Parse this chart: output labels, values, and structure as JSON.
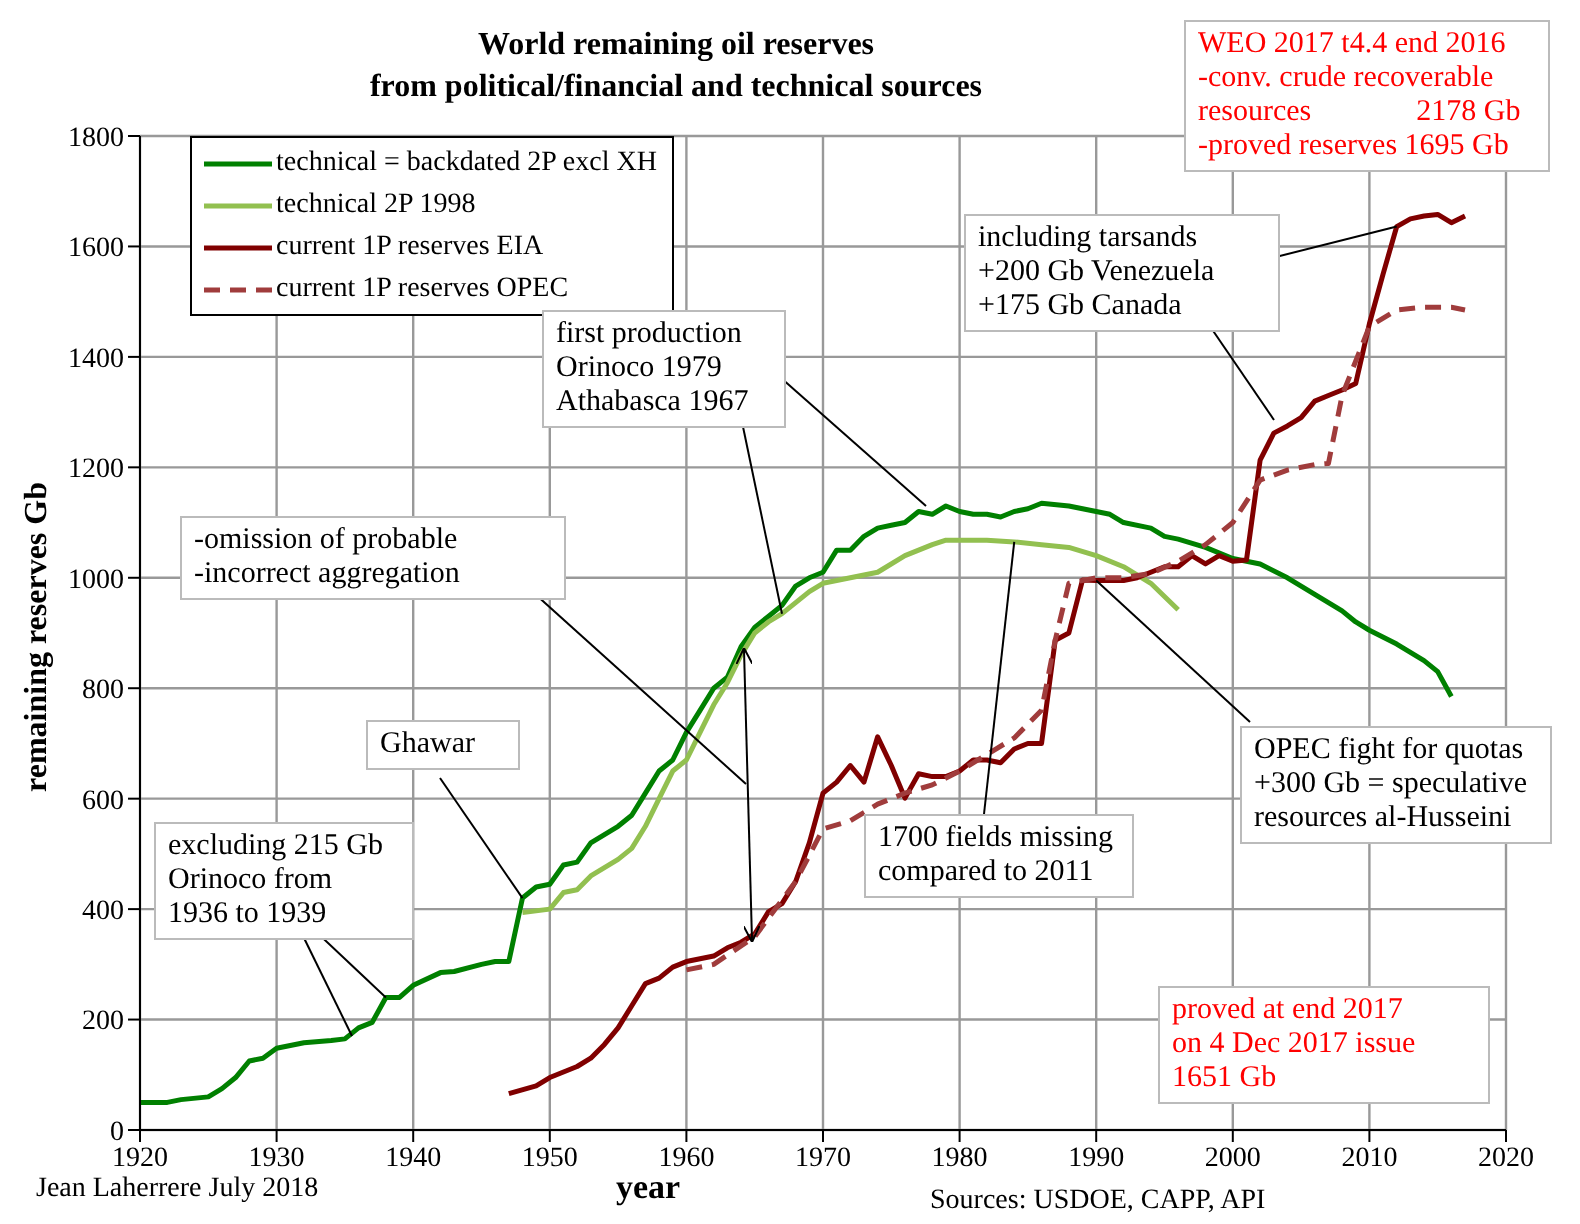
{
  "chart_data": {
    "type": "line",
    "title": "World remaining oil reserves",
    "subtitle": "from political/financial and technical sources",
    "xlabel": "year",
    "ylabel": "remaining reserves Gb",
    "xlim": [
      1920,
      2020
    ],
    "xticks": [
      1920,
      1930,
      1940,
      1950,
      1960,
      1970,
      1980,
      1990,
      2000,
      2010,
      2020
    ],
    "ylim": [
      0,
      1800
    ],
    "yticks": [
      0,
      200,
      400,
      600,
      800,
      1000,
      1200,
      1400,
      1600,
      1800
    ],
    "grid": true,
    "legend": "top left",
    "marker": "none",
    "series": [
      {
        "name": "technical = backdated 2P excl XH",
        "color": "#008000",
        "x": [
          1920,
          1922,
          1923,
          1925,
          1926,
          1927,
          1928,
          1929,
          1930,
          1932,
          1934,
          1935,
          1936,
          1937,
          1938,
          1939,
          1940,
          1942,
          1943,
          1945,
          1946,
          1947,
          1948,
          1949,
          1950,
          1951,
          1952,
          1953,
          1955,
          1956,
          1957,
          1958,
          1959,
          1960,
          1961,
          1962,
          1963,
          1964,
          1965,
          1966,
          1967,
          1968,
          1969,
          1970,
          1971,
          1972,
          1973,
          1974,
          1975,
          1976,
          1977,
          1978,
          1979,
          1980,
          1981,
          1982,
          1983,
          1984,
          1985,
          1986,
          1988,
          1990,
          1991,
          1992,
          1994,
          1995,
          1996,
          1998,
          2000,
          2002,
          2004,
          2006,
          2008,
          2009,
          2010,
          2012,
          2014,
          2015,
          2016
        ],
        "values": [
          50,
          50,
          55,
          60,
          75,
          95,
          125,
          130,
          148,
          158,
          162,
          165,
          185,
          195,
          240,
          240,
          262,
          285,
          287,
          300,
          305,
          305,
          420,
          440,
          445,
          480,
          485,
          520,
          550,
          570,
          610,
          650,
          670,
          720,
          760,
          800,
          820,
          875,
          910,
          930,
          950,
          985,
          1000,
          1010,
          1050,
          1050,
          1075,
          1090,
          1095,
          1100,
          1120,
          1115,
          1130,
          1120,
          1115,
          1115,
          1110,
          1120,
          1125,
          1135,
          1130,
          1120,
          1115,
          1100,
          1090,
          1075,
          1070,
          1055,
          1035,
          1025,
          1000,
          970,
          940,
          920,
          905,
          880,
          850,
          830,
          785
        ]
      },
      {
        "name": "technical 2P 1998",
        "color": "#92c050",
        "x": [
          1948,
          1950,
          1951,
          1952,
          1953,
          1955,
          1956,
          1957,
          1958,
          1959,
          1960,
          1961,
          1962,
          1963,
          1964,
          1965,
          1966,
          1967,
          1968,
          1969,
          1970,
          1972,
          1974,
          1976,
          1978,
          1979,
          1980,
          1982,
          1984,
          1986,
          1988,
          1990,
          1992,
          1994,
          1996
        ],
        "values": [
          394,
          400,
          430,
          435,
          460,
          490,
          510,
          550,
          600,
          650,
          670,
          720,
          770,
          810,
          860,
          900,
          920,
          935,
          955,
          975,
          990,
          1000,
          1010,
          1040,
          1060,
          1068,
          1068,
          1068,
          1065,
          1060,
          1055,
          1040,
          1020,
          990,
          942
        ]
      },
      {
        "name": "current 1P reserves EIA",
        "color": "#800000",
        "x": [
          1947,
          1949,
          1950,
          1952,
          1953,
          1954,
          1955,
          1956,
          1957,
          1958,
          1959,
          1960,
          1962,
          1963,
          1964,
          1965,
          1966,
          1967,
          1968,
          1969,
          1970,
          1971,
          1972,
          1973,
          1974,
          1975,
          1976,
          1977,
          1978,
          1979,
          1980,
          1981,
          1982,
          1983,
          1984,
          1985,
          1986,
          1987,
          1988,
          1989,
          1990,
          1992,
          1993,
          1994,
          1995,
          1996,
          1997,
          1998,
          1999,
          2000,
          2001,
          2002,
          2003,
          2004,
          2005,
          2006,
          2007,
          2008,
          2009,
          2010,
          2011,
          2012,
          2013,
          2014,
          2015,
          2016,
          2017
        ],
        "values": [
          66,
          80,
          95,
          115,
          130,
          155,
          185,
          225,
          265,
          275,
          295,
          305,
          315,
          330,
          340,
          355,
          395,
          410,
          450,
          520,
          610,
          630,
          660,
          630,
          712,
          660,
          601,
          645,
          640,
          640,
          650,
          670,
          670,
          665,
          690,
          700,
          700,
          887,
          900,
          996,
          995,
          995,
          1000,
          1010,
          1020,
          1020,
          1040,
          1025,
          1040,
          1030,
          1032,
          1213,
          1262,
          1275,
          1290,
          1320,
          1330,
          1340,
          1352,
          1460,
          1550,
          1636,
          1650,
          1655,
          1658,
          1643,
          1655
        ]
      },
      {
        "name": "current 1P reserves OPEC",
        "color": "#a03c3c",
        "line_style": "dashed",
        "x": [
          1960,
          1962,
          1965,
          1968,
          1970,
          1972,
          1974,
          1976,
          1978,
          1980,
          1982,
          1984,
          1986,
          1987,
          1988,
          1990,
          1992,
          1994,
          1996,
          1998,
          2000,
          2002,
          2004,
          2006,
          2007,
          2008,
          2010,
          2012,
          2014,
          2016,
          2017
        ],
        "values": [
          290,
          300,
          350,
          450,
          545,
          560,
          590,
          610,
          625,
          650,
          680,
          710,
          760,
          887,
          990,
          1000,
          1000,
          1008,
          1030,
          1060,
          1100,
          1177,
          1195,
          1205,
          1207,
          1330,
          1455,
          1485,
          1490,
          1490,
          1485
        ]
      }
    ],
    "annotations": [
      "WEO 2017 t4.4 end 2016\n-conv. crude recoverable\nresources              2178 Gb\n-proved reserves 1695 Gb",
      {
        "text": "including tarsands\n+200 Gb Venezuela\n+175 Gb Canada",
        "x": 2012,
        "y": 1636
      },
      {
        "text": "first production\nOrinoco 1979\nAthabasca 1967",
        "x": 1967,
        "y": 935
      },
      "-omission of probable\n-incorrect aggregation",
      {
        "text": "Ghawar",
        "x": 1948,
        "y": 420
      },
      {
        "text": "excluding 215 Gb\nOrinoco from\n1936 to 1939",
        "x": 1938,
        "y": 240
      },
      {
        "text": "1700 fields missing\ncompared to 2011",
        "x": 1984,
        "y": 1065
      },
      {
        "text": "OPEC fight for quotas\n+300 Gb = speculative\nresources al-Husseini",
        "x": 1990,
        "y": 995
      },
      "proved at end 2017\non 4 Dec 2017 issue\n1651 Gb",
      "Jean Laherrere July 2018",
      "Sources: USDOE, CAPP, API"
    ]
  }
}
